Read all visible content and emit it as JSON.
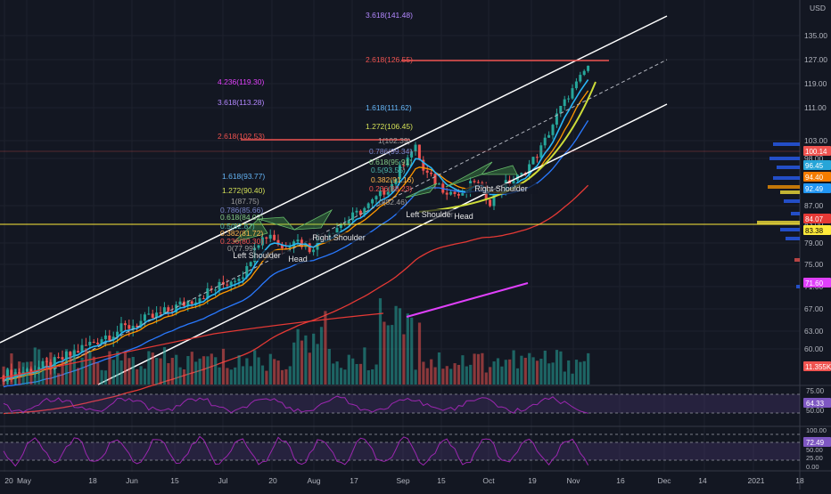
{
  "chart_data": {
    "type": "candlestick",
    "currency": "USD",
    "price_ticks": [
      "135.00",
      "127.00",
      "119.00",
      "111.00",
      "103.00",
      "98.00",
      "87.00",
      "83.00",
      "79.00",
      "75.00",
      "71.00",
      "67.00",
      "63.00",
      "60.00"
    ],
    "price_badges": [
      {
        "label": "100.14",
        "color": "#ef5350"
      },
      {
        "label": "96.45",
        "color": "#26a5d8"
      },
      {
        "label": "94.40",
        "color": "#f57c00"
      },
      {
        "label": "92.49",
        "color": "#2196f3"
      },
      {
        "label": "84.07",
        "color": "#e53935"
      },
      {
        "label": "83.38",
        "color": "#ffeb3b",
        "text_color": "#000000"
      },
      {
        "label": "71.60",
        "color": "#e040fb"
      },
      {
        "label": "11.355K",
        "color": "#ef5350"
      }
    ],
    "x_labels": [
      "20",
      "May",
      "18",
      "Jun",
      "15",
      "Jul",
      "20",
      "Aug",
      "17",
      "Sep",
      "15",
      "Oct",
      "19",
      "Nov",
      "16",
      "Dec",
      "14",
      "2021",
      "18"
    ],
    "fib_labels": [
      {
        "text": "3.618(141.48)",
        "color": "#b388ff"
      },
      {
        "text": "2.618(126.55)",
        "color": "#ef5350"
      },
      {
        "text": "4.236(119.30)",
        "color": "#e040fb"
      },
      {
        "text": "3.618(113.28)",
        "color": "#b388ff"
      },
      {
        "text": "1.618(111.62)",
        "color": "#64b5f6"
      },
      {
        "text": "1.272(106.45)",
        "color": "#d4e157"
      },
      {
        "text": "2.618(102.53)",
        "color": "#ef5350"
      },
      {
        "text": "1(102.39)",
        "color": "#9e9e9e"
      },
      {
        "text": "1.618(93.77)",
        "color": "#64b5f6"
      },
      {
        "text": "1.272(90.40)",
        "color": "#d4e157"
      },
      {
        "text": "1(87.75)",
        "color": "#9e9e9e"
      },
      {
        "text": "0.786(85.66)",
        "color": "#7986cb"
      },
      {
        "text": "0.618(84.02)",
        "color": "#81c784"
      },
      {
        "text": "0.5(82.87)",
        "color": "#4db6ac"
      },
      {
        "text": "0.382(81.72)",
        "color": "#ffb74d"
      },
      {
        "text": "0.236(80.30)",
        "color": "#ef5350"
      },
      {
        "text": "0(77.99)",
        "color": "#9e9e9e"
      },
      {
        "text": "0.786(99.34)",
        "color": "#7986cb"
      },
      {
        "text": "0.618(95.91)",
        "color": "#81c784"
      },
      {
        "text": "0.5(93.55)",
        "color": "#4db6ac"
      },
      {
        "text": "0.382(91.16)",
        "color": "#ffb74d"
      },
      {
        "text": "0.236(88.23)",
        "color": "#ef5350"
      },
      {
        "text": "0(82.46)",
        "color": "#9e9e9e"
      }
    ],
    "annotations": [
      "Left Shoulder",
      "Head",
      "Right Shoulder",
      "Left Shoulder",
      "Head",
      "Right Shoulder"
    ],
    "rsi": {
      "ticks": [
        "75.00",
        "50.00"
      ],
      "value": "64.33"
    },
    "stoch": {
      "ticks": [
        "100.00",
        "75.00",
        "50.00",
        "25.00",
        "0.00"
      ],
      "value": "72.49"
    },
    "colors": {
      "up": "#26a69a",
      "down": "#ef5350",
      "ema_fast": "#29b6f6",
      "ema_mid": "#ff9800",
      "ema_slow": "#2979ff",
      "ema_long": "#e53935",
      "channel": "#ffffff",
      "parabola": "#cddc39",
      "vol_trend": "#e040fb",
      "indicator": "#9c27b0"
    }
  }
}
